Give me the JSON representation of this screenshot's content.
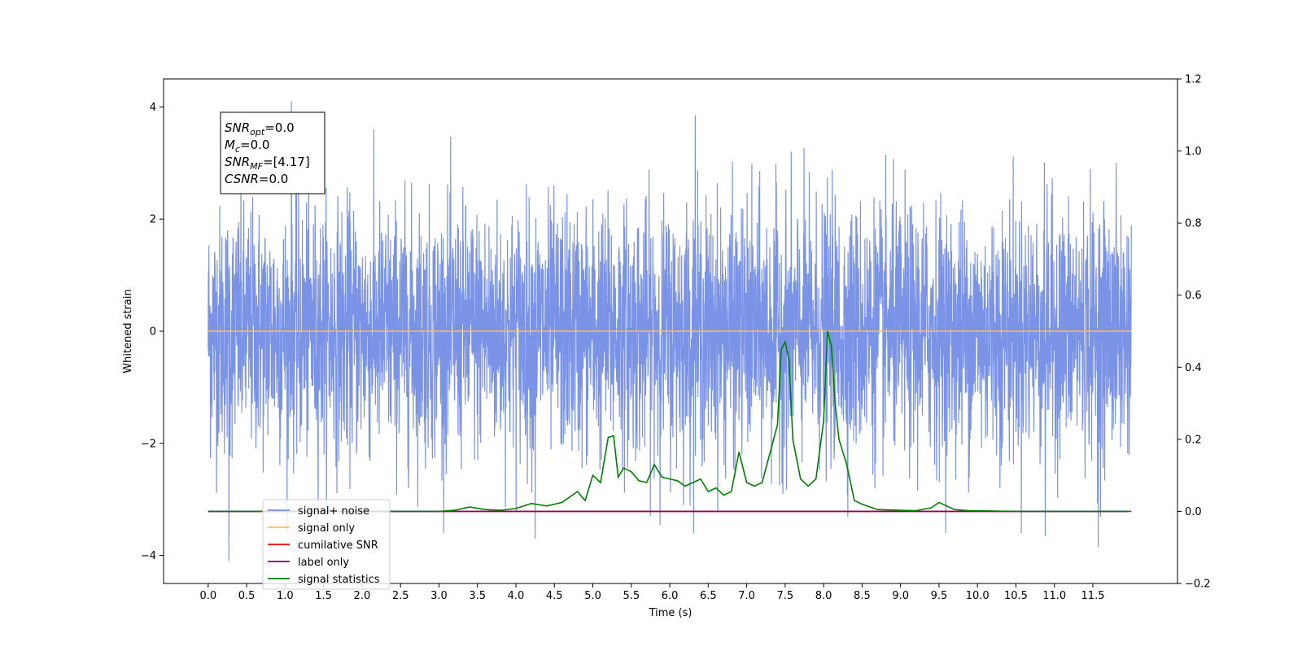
{
  "chart_data": {
    "type": "line",
    "xlabel": "Time (s)",
    "ylabel": "Whitened strain",
    "xlim": [
      -0.58,
      12.6
    ],
    "ylim": [
      -4.5,
      4.5
    ],
    "y2lim": [
      -0.2,
      1.2
    ],
    "x_ticks": [
      0.0,
      0.5,
      1.0,
      1.5,
      2.0,
      2.5,
      3.0,
      3.5,
      4.0,
      4.5,
      5.0,
      5.5,
      6.0,
      6.5,
      7.0,
      7.5,
      8.0,
      8.5,
      9.0,
      9.5,
      10.0,
      10.5,
      11.0,
      11.5
    ],
    "x_tick_labels": [
      "0.0",
      "0.5",
      "1.0",
      "1.5",
      "2.0",
      "2.5",
      "3.0",
      "3.5",
      "4.0",
      "4.5",
      "5.0",
      "5.5",
      "6.0",
      "6.5",
      "7.0",
      "7.5",
      "8.0",
      "8.5",
      "9.0",
      "9.5",
      "10.0",
      "10.5",
      "11.0",
      "11.5"
    ],
    "y_ticks": [
      -4,
      -2,
      0,
      2,
      4
    ],
    "y_tick_labels": [
      "−4",
      "−2",
      "0",
      "2",
      "4"
    ],
    "y2_ticks": [
      -0.2,
      0.0,
      0.2,
      0.4,
      0.6,
      0.8,
      1.0,
      1.2
    ],
    "y2_tick_labels": [
      "−0.2",
      "0.0",
      "0.2",
      "0.4",
      "0.6",
      "0.8",
      "1.0",
      "1.2"
    ],
    "grid": false,
    "legend_position": "lower-left",
    "series": [
      {
        "name": "signal+ noise",
        "axis": "left",
        "color": "#7a93e6",
        "note_values": "dense noise trace, roughly normal with sd ~1.1 between 0.0 and 12.0 s",
        "x_start": 0.0,
        "x_end": 12.0,
        "noise_sd": 1.1,
        "notable_points": [
          {
            "x": 0.27,
            "y": -4.1
          },
          {
            "x": 1.08,
            "y": 4.1
          },
          {
            "x": 4.25,
            "y": -3.7
          },
          {
            "x": 6.33,
            "y": 3.85
          },
          {
            "x": 10.88,
            "y": -3.65
          },
          {
            "x": 11.57,
            "y": -3.85
          }
        ]
      },
      {
        "name": "signal only",
        "axis": "left",
        "color": "#ffbf47",
        "x": [
          0.0,
          12.0
        ],
        "y": [
          0.0,
          0.0
        ]
      },
      {
        "name": "cumilative SNR",
        "axis": "right",
        "color": "#ff0000",
        "x": [
          0.0,
          12.0
        ],
        "y": [
          0.0,
          0.0
        ]
      },
      {
        "name": "label only",
        "axis": "right",
        "color": "#800080",
        "x": [
          0.0,
          11.95
        ],
        "y": [
          0.0,
          0.0
        ]
      },
      {
        "name": "signal statistics",
        "axis": "right",
        "color": "#008000",
        "x": [
          0.0,
          2.5,
          3.0,
          3.2,
          3.4,
          3.6,
          3.8,
          4.0,
          4.2,
          4.4,
          4.6,
          4.8,
          4.9,
          5.0,
          5.1,
          5.2,
          5.27,
          5.33,
          5.4,
          5.5,
          5.6,
          5.7,
          5.8,
          5.9,
          6.0,
          6.1,
          6.2,
          6.3,
          6.4,
          6.5,
          6.6,
          6.7,
          6.8,
          6.9,
          7.0,
          7.1,
          7.2,
          7.3,
          7.4,
          7.45,
          7.5,
          7.55,
          7.6,
          7.7,
          7.8,
          7.9,
          8.0,
          8.05,
          8.1,
          8.15,
          8.2,
          8.3,
          8.4,
          8.5,
          8.7,
          9.0,
          9.2,
          9.4,
          9.5,
          9.6,
          9.7,
          9.9,
          10.5,
          11.95
        ],
        "y": [
          0.0,
          0.0,
          0.0,
          0.003,
          0.012,
          0.005,
          0.003,
          0.008,
          0.022,
          0.015,
          0.025,
          0.055,
          0.03,
          0.1,
          0.08,
          0.205,
          0.21,
          0.095,
          0.12,
          0.11,
          0.085,
          0.08,
          0.13,
          0.095,
          0.09,
          0.085,
          0.07,
          0.08,
          0.09,
          0.055,
          0.065,
          0.045,
          0.055,
          0.165,
          0.08,
          0.07,
          0.08,
          0.16,
          0.24,
          0.45,
          0.47,
          0.42,
          0.2,
          0.09,
          0.07,
          0.09,
          0.25,
          0.5,
          0.46,
          0.3,
          0.2,
          0.13,
          0.03,
          0.02,
          0.005,
          0.003,
          0.002,
          0.01,
          0.025,
          0.015,
          0.005,
          0.002,
          0.0,
          0.0
        ]
      }
    ],
    "annotation": {
      "lines": [
        {
          "base": "SNR",
          "sub": "opt",
          "value": "=0.0"
        },
        {
          "base": "M",
          "sub": "c",
          "value": "=0.0"
        },
        {
          "base": "SNR",
          "sub": "MF",
          "value": "=[4.17]"
        },
        {
          "base": "CSNR",
          "sub": "",
          "value": "=0.0"
        }
      ]
    }
  }
}
